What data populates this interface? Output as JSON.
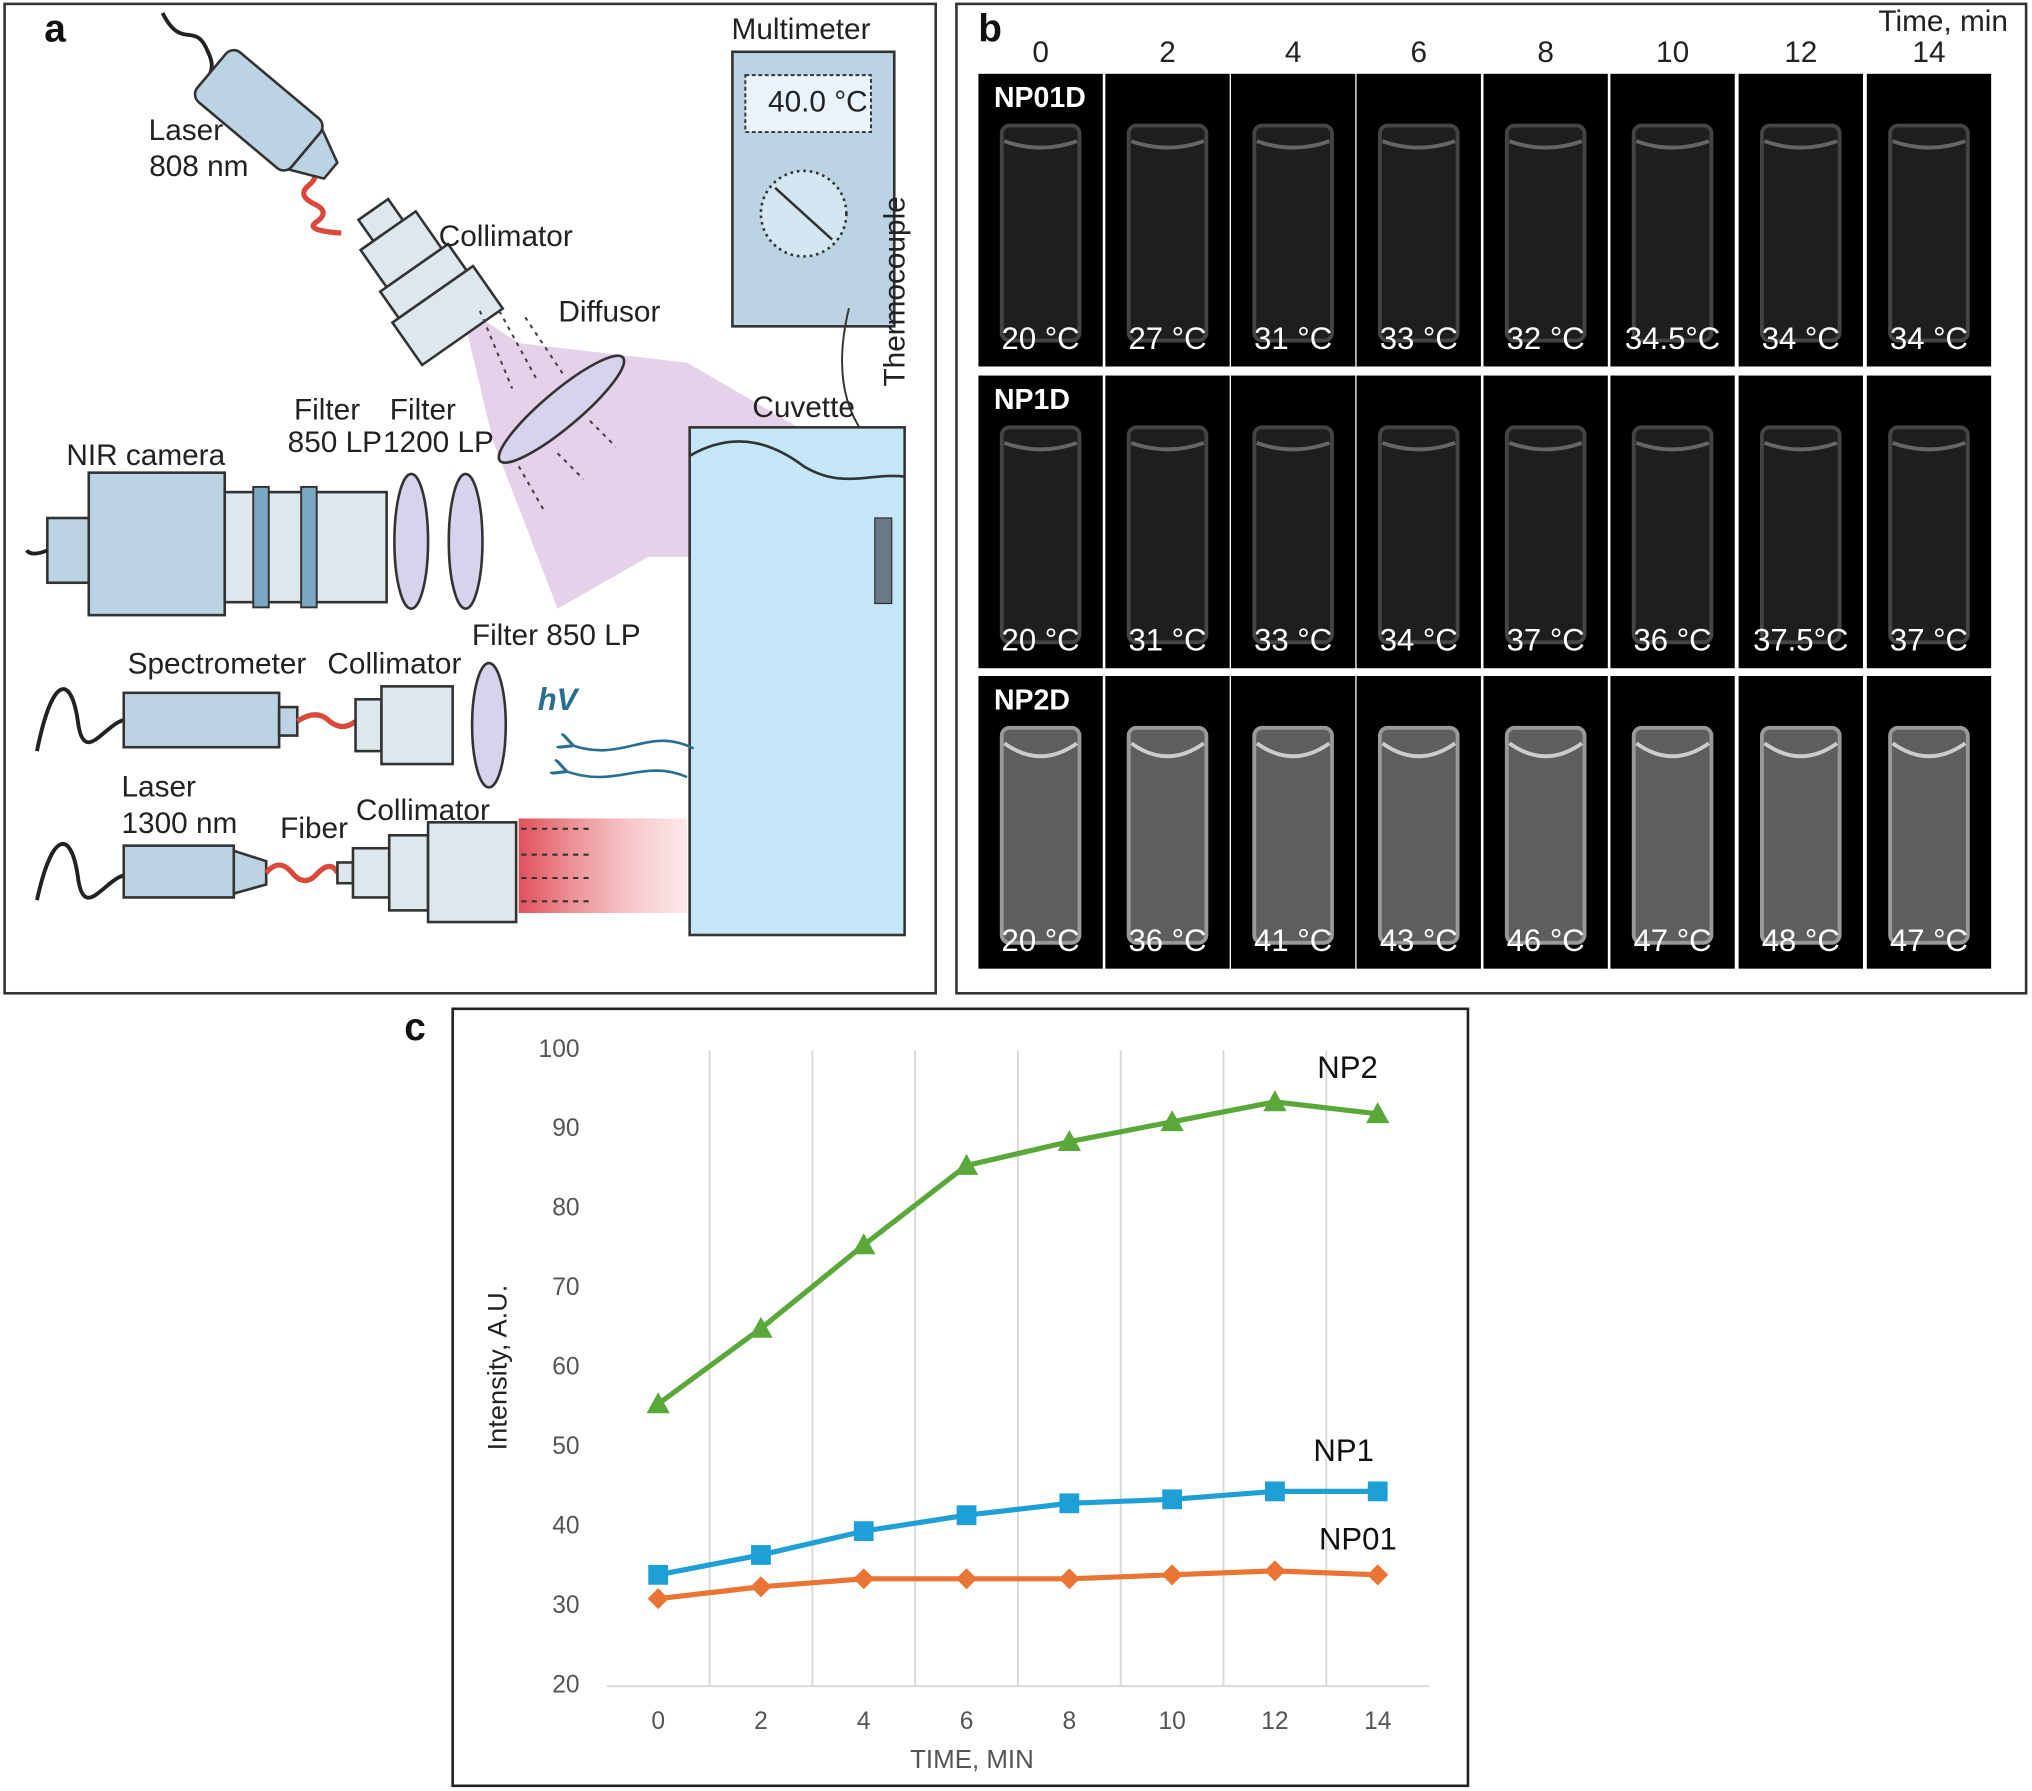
{
  "panel_a": {
    "label": "a",
    "laser_808": [
      "Laser",
      "808 nm"
    ],
    "collimator_top": "Collimator",
    "diffusor": "Diffusor",
    "multimeter": "Multimeter",
    "display": "40.0 °C",
    "thermocouple": "Thermocouple",
    "cuvette": "Cuvette",
    "filter_850": [
      "Filter",
      "850 LP"
    ],
    "filter_1200": [
      "Filter",
      "1200 LP"
    ],
    "nir_camera": "NIR camera",
    "filter_850_spec": "Filter 850 LP",
    "spectrometer": "Spectrometer",
    "collimator_spec": "Collimator",
    "hv": "hV",
    "laser_1300": [
      "Laser",
      "1300 nm"
    ],
    "fiber": "Fiber",
    "collimator_laser": "Collimator"
  },
  "panel_b": {
    "label": "b",
    "time_label": "Time, min",
    "times": [
      "0",
      "2",
      "4",
      "6",
      "8",
      "10",
      "12",
      "14"
    ],
    "rows": [
      {
        "name": "NP01D",
        "temps": [
          "20 °C",
          "27 °C",
          "31 °C",
          "33 °C",
          "32 °C",
          "34.5°C",
          "34 °C",
          "34 °C"
        ]
      },
      {
        "name": "NP1D",
        "temps": [
          "20 °C",
          "31 °C",
          "33 °C",
          "34 °C",
          "37 °C",
          "36 °C",
          "37.5°C",
          "37 °C"
        ]
      },
      {
        "name": "NP2D",
        "temps": [
          "20 °C",
          "36 °C",
          "41 °C",
          "43 °C",
          "46 °C",
          "47 °C",
          "48 °C",
          "47 °C"
        ]
      }
    ]
  },
  "chart_data": {
    "type": "line",
    "panel_label": "c",
    "x_label": "TIME, MIN",
    "y_label": "Intensity, A.U.",
    "x": [
      0,
      2,
      4,
      6,
      8,
      10,
      12,
      14
    ],
    "xlim": [
      -1,
      15
    ],
    "xticks": [
      0,
      2,
      4,
      6,
      8,
      10,
      12,
      14
    ],
    "ylim": [
      20,
      100
    ],
    "yticks": [
      20,
      30,
      40,
      50,
      60,
      70,
      80,
      90,
      100
    ],
    "grid": "vertical",
    "series": [
      {
        "name": "NP2",
        "color": "#5aa83a",
        "marker": "triangle",
        "values": [
          55.5,
          65,
          75.5,
          85.5,
          88.5,
          91,
          93.5,
          92
        ]
      },
      {
        "name": "NP1",
        "color": "#1e9fd8",
        "marker": "square",
        "values": [
          34,
          36.5,
          39.5,
          41.5,
          43,
          43.5,
          44.5,
          44.5
        ]
      },
      {
        "name": "NP01",
        "color": "#ea7433",
        "marker": "diamond",
        "values": [
          31,
          32.5,
          33.5,
          33.5,
          33.5,
          34,
          34.5,
          34
        ]
      }
    ]
  }
}
